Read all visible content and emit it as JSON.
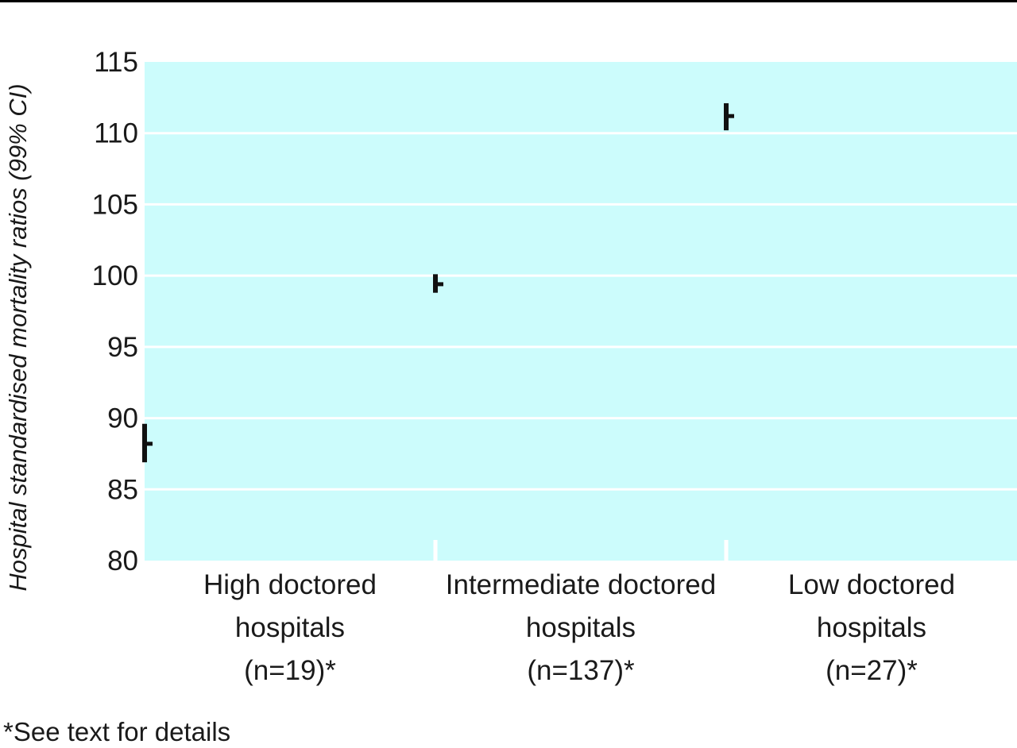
{
  "chart_data": {
    "type": "errorbar",
    "ylabel": "Hospital standardised mortality ratios (99% CI)",
    "ylim": [
      80,
      115
    ],
    "yticks": [
      80,
      85,
      90,
      95,
      100,
      105,
      110,
      115
    ],
    "grid": true,
    "categories": [
      {
        "lines": [
          "High doctored",
          "hospitals",
          "(n=19)*"
        ]
      },
      {
        "lines": [
          "Intermediate doctored",
          "hospitals",
          "(n=137)*"
        ]
      },
      {
        "lines": [
          "Low doctored",
          "hospitals",
          "(n=27)*"
        ]
      }
    ],
    "points": [
      {
        "estimate": 88.2,
        "ci_low": 86.9,
        "ci_high": 89.6
      },
      {
        "estimate": 99.4,
        "ci_low": 98.8,
        "ci_high": 100.1
      },
      {
        "estimate": 111.2,
        "ci_low": 110.2,
        "ci_high": 112.1
      }
    ],
    "colors": {
      "plot_background": "#ccfcfc",
      "gridline": "#ffffff",
      "marker": "#111111"
    }
  },
  "footnote": "*See text for details"
}
